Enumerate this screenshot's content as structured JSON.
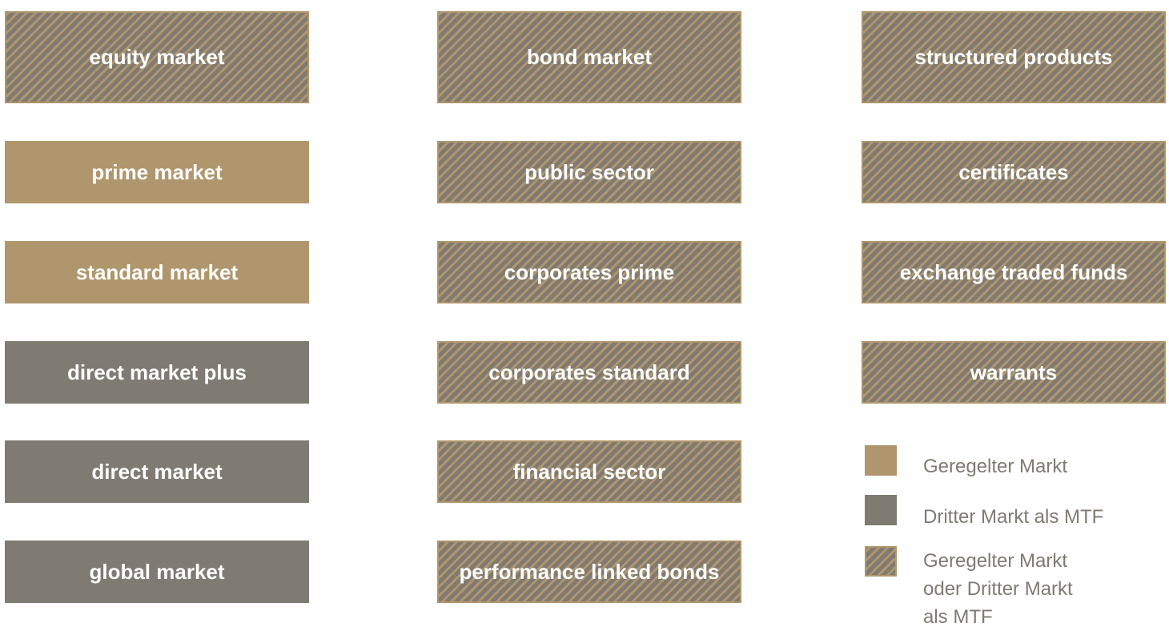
{
  "columns": [
    {
      "boxes": [
        {
          "label": "equity market",
          "color": "#7f7a72",
          "hatched": true
        },
        {
          "label": "prime market",
          "color": "#b0966c",
          "hatched": false
        },
        {
          "label": "standard market",
          "color": "#b0966c",
          "hatched": false
        },
        {
          "label": "direct market plus",
          "color": "#7f7a72",
          "hatched": false
        },
        {
          "label": "direct market",
          "color": "#7f7a72",
          "hatched": false
        },
        {
          "label": "global market",
          "color": "#7f7a72",
          "hatched": false
        }
      ]
    },
    {
      "boxes": [
        {
          "label": "bond market",
          "color": "#7f7a72",
          "hatched": true
        },
        {
          "label": "public sector",
          "color": "#7f7a72",
          "hatched": true
        },
        {
          "label": "corporates prime",
          "color": "#7f7a72",
          "hatched": true
        },
        {
          "label": "corporates standard",
          "color": "#7f7a72",
          "hatched": true
        },
        {
          "label": "financial sector",
          "color": "#7f7a72",
          "hatched": true
        },
        {
          "label": "performance linked bonds",
          "color": "#7f7a72",
          "hatched": true
        }
      ]
    },
    {
      "boxes": [
        {
          "label": "structured products",
          "color": "#7f7a72",
          "hatched": true
        },
        {
          "label": "certificates",
          "color": "#7f7a72",
          "hatched": true
        },
        {
          "label": "exchange traded funds",
          "color": "#7f7a72",
          "hatched": true
        },
        {
          "label": "warrants",
          "color": "#7f7a72",
          "hatched": true
        }
      ]
    }
  ],
  "legend": [
    {
      "label": "Geregelter Markt",
      "color": "#b0966c",
      "hatched": false
    },
    {
      "label": "Dritter Markt als MTF",
      "color": "#7f7a72",
      "hatched": false
    },
    {
      "label": "Geregelter Markt\noder Dritter Markt\nals MTF",
      "color": "#7f7a72",
      "hatched": true
    }
  ]
}
